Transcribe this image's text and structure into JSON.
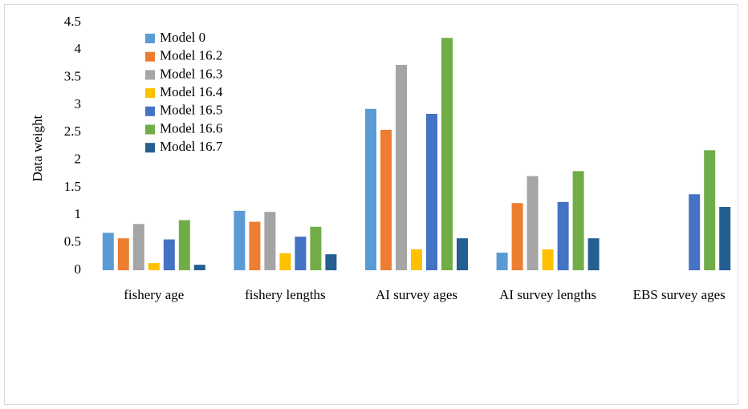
{
  "chart_data": {
    "type": "bar",
    "y_label": "Data weight",
    "categories": [
      "fishery age",
      "fishery lengths",
      "AI survey ages",
      "AI survey lengths",
      "EBS survey ages"
    ],
    "series": [
      {
        "name": "Model 0",
        "color": "#5b9bd5",
        "values": [
          0.68,
          1.08,
          2.93,
          0.32,
          null
        ]
      },
      {
        "name": "Model 16.2",
        "color": "#ed7d31",
        "values": [
          0.58,
          0.88,
          2.55,
          1.22,
          null
        ]
      },
      {
        "name": "Model 16.3",
        "color": "#a5a5a5",
        "values": [
          0.84,
          1.06,
          3.73,
          1.71,
          null
        ]
      },
      {
        "name": "Model 16.4",
        "color": "#ffc000",
        "values": [
          0.13,
          0.31,
          0.38,
          0.38,
          null
        ]
      },
      {
        "name": "Model 16.5",
        "color": "#4472c4",
        "values": [
          0.56,
          0.61,
          2.84,
          1.24,
          1.38
        ]
      },
      {
        "name": "Model 16.6",
        "color": "#70ad47",
        "values": [
          0.91,
          0.79,
          4.22,
          1.8,
          2.18
        ]
      },
      {
        "name": "Model 16.7",
        "color": "#255e91",
        "values": [
          0.1,
          0.29,
          0.58,
          0.58,
          1.15
        ]
      }
    ],
    "ylim": [
      0,
      4.5
    ],
    "yticks": [
      0,
      0.5,
      1,
      1.5,
      2,
      2.5,
      3,
      3.5,
      4,
      4.5
    ],
    "grid": false,
    "legend": "upper-left"
  }
}
